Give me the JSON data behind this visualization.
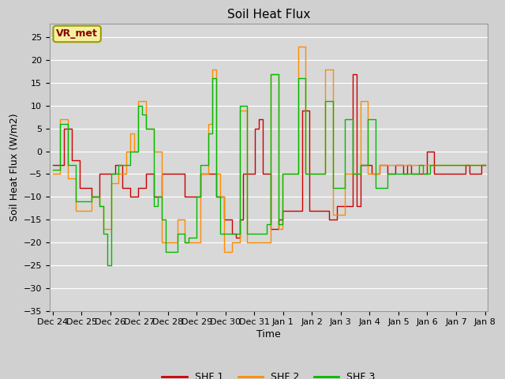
{
  "title": "Soil Heat Flux",
  "ylabel": "Soil Heat Flux (W/m2)",
  "xlabel": "Time",
  "ylim": [
    -35,
    28
  ],
  "yticks": [
    -35,
    -30,
    -25,
    -20,
    -15,
    -10,
    -5,
    0,
    5,
    10,
    15,
    20,
    25
  ],
  "fig_bg": "#d0d0d0",
  "plot_bg": "#d8d8d8",
  "grid_color": "#ffffff",
  "annotation_text": "VR_met",
  "annotation_bg": "#f5f0a0",
  "annotation_border": "#9b9b00",
  "annotation_text_color": "#8b0000",
  "series_colors": [
    "#cc0000",
    "#ff8c00",
    "#00bb00"
  ],
  "series_labels": [
    "SHF 1",
    "SHF 2",
    "SHF 3"
  ],
  "x_tick_labels": [
    "Dec 24",
    "Dec 25",
    "Dec 26",
    "Dec 27",
    "Dec 28",
    "Dec 29",
    "Dec 30",
    "Dec 31",
    "Jan 1",
    "Jan 2",
    "Jan 3",
    "Jan 4",
    "Jan 5",
    "Jan 6",
    "Jan 7",
    "Jan 8"
  ],
  "shf1": [
    -3,
    -3,
    -3,
    5,
    5,
    -2,
    -2,
    -8,
    -8,
    -8,
    -10,
    -10,
    -5,
    -5,
    -5,
    -5,
    -3,
    -3,
    -8,
    -8,
    -10,
    -10,
    -8,
    -8,
    -5,
    -5,
    -10,
    -10,
    -5,
    -5,
    -5,
    -5,
    -5,
    -5,
    -10,
    -10,
    -10,
    -10,
    -5,
    -5,
    -5,
    -5,
    -10,
    -10,
    -15,
    -15,
    -18,
    -19,
    -15,
    -5,
    -5,
    -5,
    5,
    7,
    -5,
    -5,
    -17,
    -17,
    -15,
    -13,
    -13,
    -13,
    -13,
    -13,
    9,
    9,
    -13,
    -13,
    -13,
    -13,
    -13,
    -15,
    -15,
    -12,
    -12,
    -12,
    -12,
    17,
    -12,
    -3,
    -3,
    -3,
    -5,
    -5,
    -3,
    -3,
    -5,
    -5,
    -3,
    -3,
    -5,
    -3,
    -5,
    -5,
    -5,
    -5,
    0,
    0,
    -5,
    -5,
    -5,
    -5,
    -5,
    -5,
    -5,
    -5,
    -3,
    -5,
    -5,
    -5,
    -3,
    -3
  ],
  "shf2": [
    -5,
    -5,
    7,
    7,
    -6,
    -6,
    -13,
    -13,
    -13,
    -13,
    -10,
    -10,
    -12,
    -17,
    -17,
    -7,
    -7,
    -5,
    -5,
    0,
    4,
    0,
    11,
    11,
    5,
    5,
    0,
    0,
    -20,
    -20,
    -20,
    -20,
    -15,
    -15,
    -20,
    -20,
    -20,
    -20,
    -5,
    -5,
    6,
    18,
    -5,
    -10,
    -22,
    -22,
    -20,
    -20,
    9,
    9,
    -20,
    -20,
    -20,
    -20,
    -20,
    -20,
    17,
    17,
    -17,
    -5,
    -5,
    -5,
    -5,
    23,
    23,
    -5,
    -5,
    -5,
    -5,
    -5,
    18,
    18,
    -14,
    -14,
    -14,
    -5,
    -5,
    -5,
    -5,
    11,
    11,
    -5,
    -5,
    -5,
    -3,
    -3,
    -3,
    -3,
    -3,
    -3,
    -3,
    -3,
    -3,
    -3,
    -3,
    -3,
    -3,
    -3,
    -3,
    -3,
    -3,
    -3,
    -3,
    -3,
    -3,
    -3,
    -3,
    -3,
    -3,
    -3,
    -3,
    -3
  ],
  "shf3": [
    -4,
    -4,
    6,
    6,
    -3,
    -3,
    -11,
    -11,
    -11,
    -11,
    -10,
    -10,
    -12,
    -18,
    -25,
    -5,
    -5,
    -3,
    -3,
    -3,
    0,
    0,
    10,
    8,
    5,
    5,
    -12,
    -10,
    -15,
    -22,
    -22,
    -22,
    -18,
    -18,
    -20,
    -19,
    -19,
    -10,
    -3,
    -3,
    4,
    16,
    -10,
    -18,
    -18,
    -18,
    -18,
    -18,
    10,
    10,
    -18,
    -18,
    -18,
    -18,
    -18,
    -16,
    17,
    17,
    -16,
    -5,
    -5,
    -5,
    -5,
    16,
    16,
    -5,
    -5,
    -5,
    -5,
    -5,
    11,
    11,
    -8,
    -8,
    -8,
    7,
    7,
    -5,
    -5,
    -3,
    -3,
    7,
    7,
    -8,
    -8,
    -8,
    -5,
    -5,
    -5,
    -5,
    -5,
    -5,
    -5,
    -5,
    -3,
    -5,
    -5,
    -3,
    -3,
    -3,
    -3,
    -3,
    -3,
    -3,
    -3,
    -3,
    -3,
    -3,
    -3,
    -3,
    -3,
    -3
  ]
}
